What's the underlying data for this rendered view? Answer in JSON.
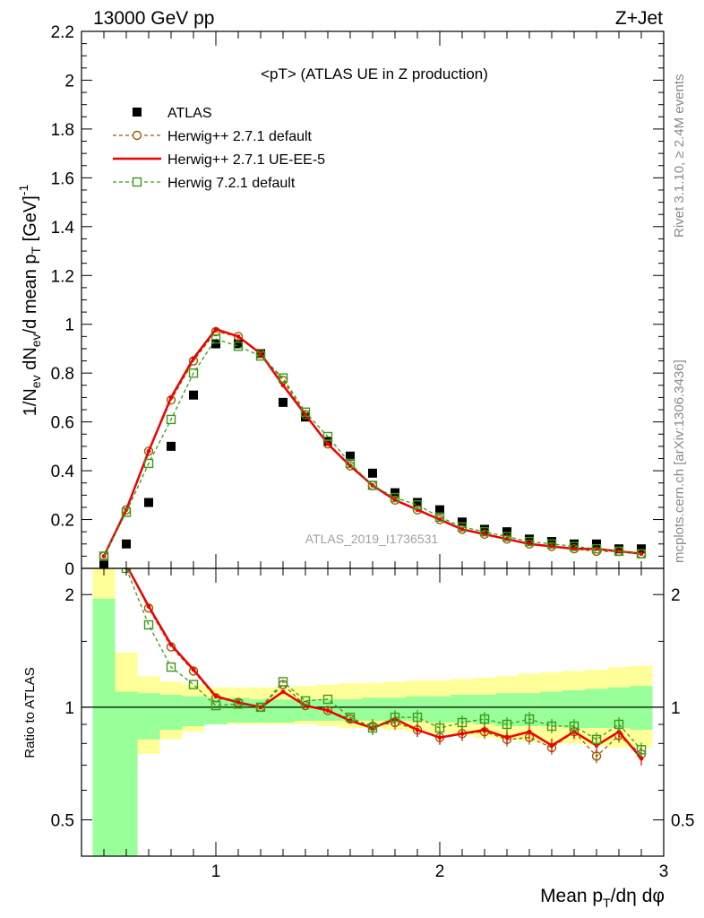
{
  "header": {
    "left_label": "13000 GeV pp",
    "right_label": "Z+Jet"
  },
  "side_labels": {
    "rivet": "Rivet 3.1.10, ≥ 2.4M events",
    "mcplots": "mcplots.cern.ch [arXiv:1306.3436]"
  },
  "watermark": "ATLAS_2019_I1736531",
  "colors": {
    "atlas": "#000000",
    "herwigpp_default": "#9a5a00",
    "herwigpp_ueee5": "#ee0000",
    "herwig7_default": "#3a9a1a",
    "band_stat": "#99ff99",
    "band_syst": "#ffff99"
  },
  "chart_data": [
    {
      "type": "scatter",
      "title": "<pT> (ATLAS UE in Z production)",
      "ylabel": "1/N_ev dN_ev/d mean p_T [GeV]^-1",
      "ylim": [
        0,
        2.2
      ],
      "xlim": [
        0.4,
        3.0
      ],
      "yticks": [
        "0",
        "0.2",
        "0.4",
        "0.6",
        "0.8",
        "1",
        "1.2",
        "1.4",
        "1.6",
        "1.8",
        "2",
        "2.2"
      ],
      "legend_position": "upper-left",
      "x": [
        0.5,
        0.6,
        0.7,
        0.8,
        0.9,
        1.0,
        1.1,
        1.2,
        1.3,
        1.4,
        1.5,
        1.6,
        1.7,
        1.8,
        1.9,
        2.0,
        2.1,
        2.2,
        2.3,
        2.4,
        2.5,
        2.6,
        2.7,
        2.8,
        2.9
      ],
      "series": [
        {
          "name": "ATLAS",
          "key": "atlas",
          "values": [
            0.02,
            0.1,
            0.27,
            0.5,
            0.71,
            0.92,
            0.92,
            0.88,
            0.68,
            0.62,
            0.52,
            0.46,
            0.39,
            0.31,
            0.27,
            0.24,
            0.19,
            0.16,
            0.15,
            0.12,
            0.11,
            0.1,
            0.1,
            0.08,
            0.08
          ]
        },
        {
          "name": "Herwig++ 2.7.1 default",
          "key": "herwigpp_default",
          "values": [
            0.05,
            0.24,
            0.48,
            0.69,
            0.85,
            0.97,
            0.95,
            0.88,
            0.77,
            0.63,
            0.51,
            0.42,
            0.34,
            0.28,
            0.24,
            0.2,
            0.16,
            0.14,
            0.12,
            0.1,
            0.09,
            0.08,
            0.07,
            0.07,
            0.06
          ]
        },
        {
          "name": "Herwig++ 2.7.1 UE-EE-5",
          "key": "herwigpp_ueee5",
          "values": [
            0.05,
            0.24,
            0.48,
            0.7,
            0.86,
            0.98,
            0.95,
            0.88,
            0.75,
            0.63,
            0.51,
            0.42,
            0.34,
            0.28,
            0.24,
            0.2,
            0.16,
            0.14,
            0.12,
            0.1,
            0.09,
            0.08,
            0.08,
            0.07,
            0.06
          ]
        },
        {
          "name": "Herwig 7.2.1 default",
          "key": "herwig7_default",
          "values": [
            0.05,
            0.23,
            0.43,
            0.61,
            0.8,
            0.94,
            0.91,
            0.87,
            0.78,
            0.64,
            0.54,
            0.43,
            0.34,
            0.29,
            0.26,
            0.21,
            0.17,
            0.15,
            0.13,
            0.11,
            0.1,
            0.09,
            0.08,
            0.07,
            0.06
          ]
        }
      ]
    },
    {
      "type": "line",
      "xlabel": "Mean p_T/dη dφ",
      "ylabel": "Ratio to ATLAS",
      "ylim": [
        0.4,
        2.35
      ],
      "log_y": true,
      "xlim": [
        0.4,
        3.0
      ],
      "xticks": [
        "1",
        "2",
        "3"
      ],
      "yticks": [
        "0.5",
        "1",
        "2"
      ],
      "x": [
        0.5,
        0.6,
        0.7,
        0.8,
        0.9,
        1.0,
        1.1,
        1.2,
        1.3,
        1.4,
        1.5,
        1.6,
        1.7,
        1.8,
        1.9,
        2.0,
        2.1,
        2.2,
        2.3,
        2.4,
        2.5,
        2.6,
        2.7,
        2.8,
        2.9
      ],
      "band_stat_low": [
        0.35,
        0.35,
        0.82,
        0.87,
        0.89,
        0.9,
        0.91,
        0.91,
        0.91,
        0.92,
        0.92,
        0.92,
        0.92,
        0.92,
        0.92,
        0.91,
        0.91,
        0.9,
        0.89,
        0.89,
        0.89,
        0.88,
        0.88,
        0.88,
        0.87
      ],
      "band_stat_high": [
        1.95,
        1.1,
        1.09,
        1.08,
        1.07,
        1.06,
        1.06,
        1.05,
        1.05,
        1.05,
        1.05,
        1.05,
        1.06,
        1.06,
        1.07,
        1.07,
        1.08,
        1.08,
        1.09,
        1.09,
        1.1,
        1.11,
        1.12,
        1.13,
        1.14
      ],
      "band_syst_low": [
        0.66,
        0.66,
        0.75,
        0.82,
        0.86,
        0.9,
        0.9,
        0.9,
        0.9,
        0.9,
        0.89,
        0.88,
        0.88,
        0.87,
        0.86,
        0.85,
        0.84,
        0.83,
        0.82,
        0.81,
        0.8,
        0.8,
        0.79,
        0.78,
        0.78
      ],
      "band_syst_high": [
        2.35,
        1.4,
        1.21,
        1.17,
        1.15,
        1.13,
        1.13,
        1.13,
        1.13,
        1.14,
        1.15,
        1.16,
        1.16,
        1.17,
        1.18,
        1.18,
        1.19,
        1.2,
        1.21,
        1.23,
        1.24,
        1.25,
        1.26,
        1.28,
        1.29
      ],
      "series": [
        {
          "name": "Herwig++ 2.7.1 default",
          "key": "herwigpp_default",
          "values": [
            2.5,
            2.4,
            1.84,
            1.45,
            1.25,
            1.06,
            1.03,
            1.0,
            1.15,
            1.01,
            0.98,
            0.93,
            0.89,
            0.91,
            0.87,
            0.83,
            0.85,
            0.86,
            0.82,
            0.83,
            0.78,
            0.86,
            0.74,
            0.84,
            0.75
          ]
        },
        {
          "name": "Herwig++ 2.7.1 UE-EE-5",
          "key": "herwigpp_ueee5",
          "values": [
            2.5,
            2.4,
            1.86,
            1.47,
            1.26,
            1.07,
            1.03,
            1.0,
            1.1,
            1.01,
            0.98,
            0.92,
            0.88,
            0.93,
            0.87,
            0.83,
            0.85,
            0.87,
            0.83,
            0.86,
            0.79,
            0.86,
            0.79,
            0.86,
            0.73
          ]
        },
        {
          "name": "Herwig 7.2.1 default",
          "key": "herwig7_default",
          "values": [
            2.5,
            2.35,
            1.66,
            1.28,
            1.15,
            1.01,
            1.02,
            1.0,
            1.17,
            1.04,
            1.05,
            0.94,
            0.88,
            0.94,
            0.94,
            0.88,
            0.91,
            0.93,
            0.9,
            0.93,
            0.89,
            0.89,
            0.82,
            0.9,
            0.77
          ]
        }
      ]
    }
  ]
}
